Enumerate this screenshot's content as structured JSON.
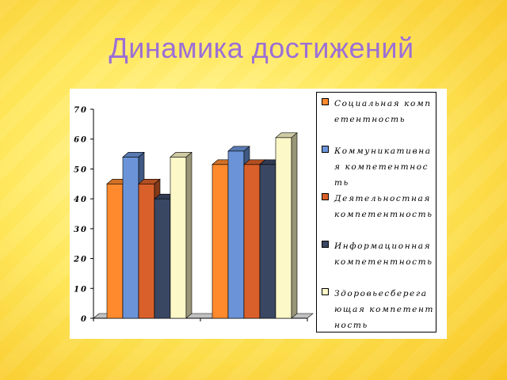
{
  "page": {
    "title": "Динамика достижений"
  },
  "chart_data": {
    "type": "bar",
    "categories": [
      "",
      ""
    ],
    "series": [
      {
        "name": "Социальная компетентность",
        "values": [
          45,
          51.5
        ],
        "color": "#ff8a2e"
      },
      {
        "name": "Коммуникативная компетентность",
        "values": [
          54,
          56
        ],
        "color": "#6b94d8"
      },
      {
        "name": "Деятельностная компетентность",
        "values": [
          45,
          51.5
        ],
        "color": "#d9602a"
      },
      {
        "name": "Информационная компетентность",
        "values": [
          40,
          51.5
        ],
        "color": "#3a4763"
      },
      {
        "name": "Здоровьесберегающая компетентность",
        "values": [
          54,
          60.5
        ],
        "color": "#fdf8c8"
      }
    ],
    "ylim": [
      0,
      70
    ],
    "yticks": [
      "0",
      "10",
      "20",
      "30",
      "40",
      "50",
      "60",
      "70"
    ],
    "grid": false,
    "legend_position": "right",
    "style": "3d-clustered-column"
  },
  "legend": {
    "items": [
      {
        "label": "Социальная компетентность",
        "color": "#ff8a2e"
      },
      {
        "label": "Коммуникативная компетентность",
        "color": "#6b94d8"
      },
      {
        "label": "Деятельностная компетентность",
        "color": "#d9602a"
      },
      {
        "label": "Информационная компетентность",
        "color": "#3a4763"
      },
      {
        "label": "Здоровьесберегающая компетентность",
        "color": "#fdf8c8"
      }
    ]
  }
}
